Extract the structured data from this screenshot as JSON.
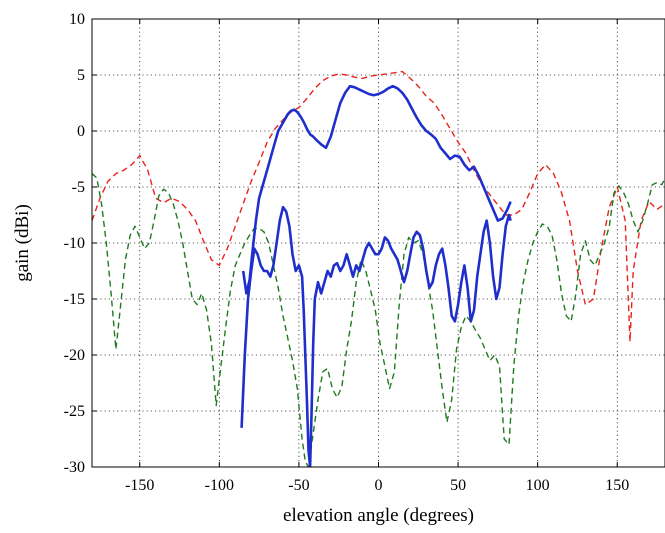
{
  "chart_data": {
    "type": "line",
    "xlabel": "elevation angle (degrees)",
    "ylabel": "gain (dBi)",
    "xlim": [
      -180,
      180
    ],
    "ylim": [
      -30,
      10
    ],
    "xticks": [
      -150,
      -100,
      -50,
      0,
      50,
      100,
      150
    ],
    "yticks": [
      -30,
      -25,
      -20,
      -15,
      -10,
      -5,
      0,
      5,
      10
    ],
    "grid": true,
    "series": [
      {
        "color": "#e8231c",
        "style": "dashed",
        "x": [
          -180,
          -175,
          -170,
          -165,
          -160,
          -155,
          -150,
          -145,
          -140,
          -135,
          -130,
          -125,
          -120,
          -115,
          -110,
          -105,
          -100,
          -95,
          -90,
          -85,
          -80,
          -75,
          -70,
          -65,
          -60,
          -55,
          -50,
          -45,
          -40,
          -35,
          -30,
          -25,
          -20,
          -15,
          -10,
          -5,
          0,
          5,
          10,
          15,
          20,
          25,
          30,
          35,
          40,
          45,
          50,
          55,
          60,
          65,
          70,
          75,
          80,
          85,
          90,
          95,
          100,
          105,
          110,
          115,
          120,
          125,
          130,
          135,
          140,
          145,
          150,
          155,
          158,
          160,
          165,
          170,
          175,
          180
        ],
        "y": [
          -8,
          -6,
          -4.5,
          -3.8,
          -3.5,
          -3,
          -2.2,
          -3.5,
          -6,
          -6.4,
          -6,
          -6.3,
          -7,
          -8,
          -9.8,
          -11.5,
          -12,
          -10.5,
          -8.5,
          -6.5,
          -4.5,
          -2.8,
          -1,
          0.2,
          1,
          1.7,
          2.1,
          2.9,
          3.8,
          4.5,
          4.9,
          5.1,
          5,
          4.8,
          4.7,
          4.9,
          5,
          5.1,
          5.2,
          5.3,
          4.7,
          4,
          3.1,
          2.5,
          1.4,
          0.2,
          -1,
          -2,
          -3.5,
          -4.8,
          -5.7,
          -6.6,
          -7.5,
          -7.5,
          -7,
          -5.5,
          -3.8,
          -3,
          -3.8,
          -5.5,
          -8,
          -12.5,
          -15.5,
          -15,
          -10.5,
          -6.8,
          -5,
          -8,
          -18.8,
          -12.5,
          -8,
          -6.3,
          -7,
          -6.5
        ]
      },
      {
        "color": "#1f7a1f",
        "style": "dashed",
        "x": [
          -180,
          -177,
          -174,
          -171,
          -168,
          -165,
          -162,
          -159,
          -156,
          -153,
          -150,
          -147,
          -144,
          -141,
          -138,
          -135,
          -132,
          -129,
          -126,
          -123,
          -120,
          -117,
          -114,
          -111,
          -108,
          -105,
          -102,
          -99,
          -96,
          -93,
          -90,
          -87,
          -84,
          -81,
          -78,
          -75,
          -72,
          -69,
          -66,
          -63,
          -60,
          -57,
          -54,
          -51,
          -48,
          -46,
          -44,
          -41,
          -38,
          -35,
          -32,
          -29,
          -26,
          -23,
          -20,
          -17,
          -14,
          -11,
          -8,
          -5,
          -2,
          1,
          4,
          7,
          10,
          13,
          16,
          19,
          22,
          25,
          28,
          31,
          34,
          37,
          40,
          43,
          46,
          49,
          52,
          55,
          58,
          61,
          64,
          67,
          70,
          73,
          76,
          79,
          82,
          85,
          88,
          91,
          94,
          97,
          100,
          103,
          106,
          109,
          112,
          115,
          118,
          121,
          124,
          127,
          130,
          133,
          136,
          139,
          142,
          145,
          148,
          151,
          154,
          157,
          160,
          163,
          166,
          169,
          172,
          175,
          178,
          180
        ],
        "y": [
          -3.8,
          -4.2,
          -6.5,
          -10,
          -14.5,
          -19.5,
          -15.5,
          -11.5,
          -9.3,
          -8.5,
          -9.5,
          -10.5,
          -10,
          -8,
          -5.8,
          -5.2,
          -5.5,
          -6.5,
          -8,
          -10,
          -12.5,
          -15,
          -15.5,
          -14.5,
          -16,
          -19,
          -24.5,
          -21,
          -17.5,
          -14.2,
          -12,
          -11,
          -10,
          -9.3,
          -8.7,
          -8.7,
          -9,
          -10,
          -12,
          -14,
          -16.5,
          -18.5,
          -20.5,
          -23,
          -27.5,
          -29.5,
          -30,
          -27,
          -24,
          -21.5,
          -21.2,
          -23,
          -23.8,
          -22.8,
          -19.5,
          -17,
          -13.5,
          -11.5,
          -12.5,
          -14.2,
          -16,
          -19,
          -21,
          -23,
          -21.5,
          -15.5,
          -11,
          -9.5,
          -10,
          -9.8,
          -11,
          -13.5,
          -16,
          -19.5,
          -23,
          -26,
          -24,
          -19.5,
          -17.5,
          -16.5,
          -17,
          -17.8,
          -18.5,
          -19.5,
          -20.5,
          -20,
          -21,
          -27.5,
          -28,
          -21,
          -16.5,
          -13.5,
          -11.5,
          -10,
          -9,
          -8.3,
          -8.5,
          -9.3,
          -11.5,
          -14.5,
          -16.5,
          -17,
          -14.5,
          -11,
          -9.8,
          -11.5,
          -12,
          -11,
          -10,
          -8.5,
          -5.5,
          -4.9,
          -5.5,
          -6.5,
          -8,
          -9,
          -8,
          -6.5,
          -4.8,
          -4.6,
          -4.8,
          -4.2
        ]
      },
      {
        "color": "#1f2fcc",
        "style": "solid",
        "x": [
          -85,
          -83,
          -81,
          -79,
          -77,
          -75,
          -72,
          -69,
          -66,
          -63,
          -61,
          -59,
          -57,
          -55,
          -53,
          -51,
          -49,
          -47,
          -45,
          -43,
          -41,
          -39,
          -36,
          -33,
          -30,
          -27,
          -24,
          -21,
          -18,
          -15,
          -12,
          -9,
          -6,
          -3,
          0,
          3,
          6,
          9,
          12,
          15,
          18,
          21,
          24,
          27,
          30,
          33,
          36,
          39,
          42,
          45,
          48,
          51,
          54,
          57,
          60,
          63,
          66,
          69,
          72,
          75,
          78,
          81,
          83
        ],
        "y": [
          -12.5,
          -14.5,
          -13.3,
          -10.5,
          -8,
          -6,
          -4.5,
          -3,
          -1.5,
          0,
          0.5,
          1,
          1.5,
          1.8,
          1.9,
          1.7,
          1.3,
          0.8,
          0.2,
          -0.3,
          -0.5,
          -0.8,
          -1.2,
          -1.5,
          -0.5,
          1,
          2.5,
          3.4,
          4,
          3.9,
          3.7,
          3.5,
          3.3,
          3.2,
          3.3,
          3.5,
          3.8,
          4,
          3.8,
          3.4,
          2.8,
          2,
          1.2,
          0.5,
          0,
          -0.3,
          -0.7,
          -1.5,
          -2,
          -2.5,
          -2.2,
          -2.3,
          -3,
          -3.5,
          -3.2,
          -4,
          -5,
          -6,
          -7,
          -8,
          -7.8,
          -7,
          -6.3
        ]
      },
      {
        "color": "#1f2fcc",
        "style": "solid",
        "x": [
          -86,
          -84,
          -82,
          -80,
          -78,
          -76,
          -74,
          -72,
          -70,
          -68,
          -66,
          -64,
          -62,
          -60,
          -58,
          -56,
          -54,
          -52,
          -50,
          -48,
          -47,
          -46,
          -45,
          -44,
          -43,
          -42,
          -41,
          -40,
          -38,
          -36,
          -34,
          -32,
          -30,
          -28,
          -26,
          -24,
          -22,
          -20,
          -18,
          -16,
          -14,
          -12,
          -10,
          -8,
          -6,
          -4,
          -2,
          0,
          2,
          4,
          6,
          8,
          10,
          12,
          14,
          16,
          18,
          20,
          22,
          24,
          26,
          28,
          30,
          32,
          34,
          36,
          38,
          40,
          42,
          44,
          46,
          48,
          50,
          52,
          54,
          56,
          58,
          60,
          62,
          64,
          66,
          68,
          70,
          72,
          74,
          76,
          78,
          80,
          82,
          83
        ],
        "y": [
          -26.5,
          -20,
          -15,
          -12.5,
          -10.5,
          -11,
          -12,
          -12.5,
          -12.5,
          -13,
          -12,
          -10,
          -8,
          -6.8,
          -7.2,
          -8.5,
          -11,
          -12.5,
          -12,
          -13,
          -16,
          -20,
          -24,
          -28.5,
          -30,
          -25,
          -19,
          -15,
          -13.5,
          -14.5,
          -13.5,
          -12.5,
          -13,
          -12,
          -11.8,
          -12.5,
          -12,
          -11,
          -12,
          -13,
          -12,
          -12.5,
          -11.5,
          -10.5,
          -10,
          -10.5,
          -11,
          -11,
          -10.5,
          -9.5,
          -9.8,
          -10.5,
          -11,
          -11.5,
          -12.5,
          -13.5,
          -12.5,
          -11,
          -9.5,
          -9,
          -9.3,
          -10.5,
          -12.5,
          -14,
          -13.5,
          -12,
          -11,
          -10.5,
          -12,
          -14,
          -16.5,
          -17,
          -15.5,
          -13.5,
          -12,
          -14,
          -17,
          -16,
          -13,
          -11,
          -9,
          -8,
          -10,
          -13,
          -15,
          -14,
          -11,
          -8.5,
          -7.5,
          -8
        ]
      }
    ]
  }
}
